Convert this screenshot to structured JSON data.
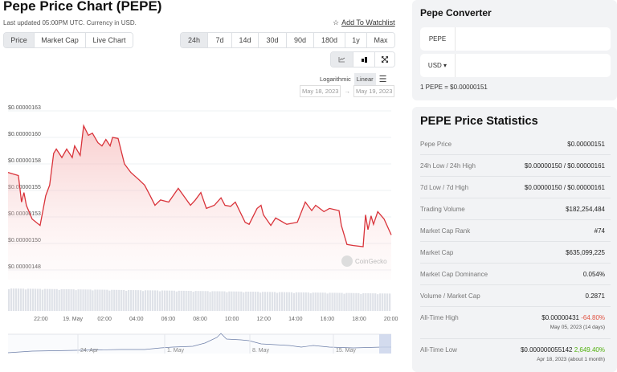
{
  "header": {
    "title": "Pepe Price Chart (PEPE)",
    "updated": "Last updated 05:00PM UTC. Currency in USD.",
    "watchlist": "Add To Watchlist"
  },
  "tabs": [
    {
      "label": "Price",
      "active": true
    },
    {
      "label": "Market Cap"
    },
    {
      "label": "Live Chart"
    }
  ],
  "ranges": [
    {
      "label": "24h",
      "active": true
    },
    {
      "label": "7d"
    },
    {
      "label": "14d"
    },
    {
      "label": "30d"
    },
    {
      "label": "90d"
    },
    {
      "label": "180d"
    },
    {
      "label": "1y"
    },
    {
      "label": "Max"
    }
  ],
  "tools": [
    "line-chart-icon",
    "candlestick-icon",
    "fullscreen-icon"
  ],
  "scale": {
    "log": "Logarithmic",
    "linear": "Linear",
    "active": "Linear"
  },
  "dates": {
    "from": "May 18, 2023",
    "sep": "→",
    "to": "May 19, 2023"
  },
  "watermark": "CoinGecko",
  "colors": {
    "line": "#d9333a",
    "fill": "#f8c9c9",
    "volume": "#dfe2e8",
    "navigator": "#6c7ea8"
  },
  "chart_data": {
    "type": "area",
    "ylim": [
      1.475e-06,
      1.625e-06
    ],
    "ytick_labels": [
      "$0.00000163",
      "$0.00000160",
      "$0.00000158",
      "$0.00000155",
      "$0.00000153",
      "$0.00000150",
      "$0.00000148"
    ],
    "yticks": [
      1.625e-06,
      1.6e-06,
      1.575e-06,
      1.55e-06,
      1.525e-06,
      1.5e-06,
      1.475e-06
    ],
    "xticks": [
      {
        "t": "2023-05-18T22:00",
        "label": "22:00"
      },
      {
        "t": "2023-05-19T00:00",
        "label": "19. May"
      },
      {
        "t": "2023-05-19T02:00",
        "label": "02:00"
      },
      {
        "t": "2023-05-19T04:00",
        "label": "04:00"
      },
      {
        "t": "2023-05-19T06:00",
        "label": "06:00"
      },
      {
        "t": "2023-05-19T08:00",
        "label": "08:00"
      },
      {
        "t": "2023-05-19T10:00",
        "label": "10:00"
      },
      {
        "t": "2023-05-19T12:00",
        "label": "12:00"
      },
      {
        "t": "2023-05-19T14:00",
        "label": "14:00"
      },
      {
        "t": "2023-05-19T16:00",
        "label": "16:00"
      },
      {
        "t": "2023-05-19T18:00",
        "label": "18:00"
      },
      {
        "t": "2023-05-19T20:00",
        "label": "20:00"
      }
    ],
    "grid": true,
    "series": [
      {
        "x": [
          "2023-05-18T19:56",
          "2023-05-18T20:35",
          "2023-05-18T20:47",
          "2023-05-18T20:56",
          "2023-05-18T21:05",
          "2023-05-18T21:27",
          "2023-05-18T21:57",
          "2023-05-18T22:18",
          "2023-05-18T22:33",
          "2023-05-18T22:48",
          "2023-05-18T22:58",
          "2023-05-18T23:19",
          "2023-05-18T23:37",
          "2023-05-18T23:58",
          "2023-05-19T00:07",
          "2023-05-19T00:28",
          "2023-05-19T00:41",
          "2023-05-19T00:59",
          "2023-05-19T01:14",
          "2023-05-19T01:35",
          "2023-05-19T01:50",
          "2023-05-19T02:05",
          "2023-05-19T02:21",
          "2023-05-19T02:30",
          "2023-05-19T02:51",
          "2023-05-19T03:15",
          "2023-05-19T03:39",
          "2023-05-19T04:10",
          "2023-05-19T04:31",
          "2023-05-19T04:52",
          "2023-05-19T05:10",
          "2023-05-19T05:31",
          "2023-05-19T06:02",
          "2023-05-19T06:38",
          "2023-05-19T07:24",
          "2023-05-19T07:42",
          "2023-05-19T08:03",
          "2023-05-19T08:24",
          "2023-05-19T08:54",
          "2023-05-19T09:19",
          "2023-05-19T09:34",
          "2023-05-19T09:55",
          "2023-05-19T10:13",
          "2023-05-19T10:50",
          "2023-05-19T11:05",
          "2023-05-19T11:35",
          "2023-05-19T11:50",
          "2023-05-19T11:59",
          "2023-05-19T12:27",
          "2023-05-19T12:45",
          "2023-05-19T13:27",
          "2023-05-19T14:07",
          "2023-05-19T14:37",
          "2023-05-19T15:01",
          "2023-05-19T15:16",
          "2023-05-19T15:47",
          "2023-05-19T16:08",
          "2023-05-19T16:44",
          "2023-05-19T16:53",
          "2023-05-19T17:14",
          "2023-05-19T17:39",
          "2023-05-19T18:15",
          "2023-05-19T18:24",
          "2023-05-19T18:33",
          "2023-05-19T18:45",
          "2023-05-19T18:54",
          "2023-05-19T19:10",
          "2023-05-19T19:34",
          "2023-05-19T20:01"
        ],
        "y": [
          1.567e-06,
          1.564e-06,
          1.539e-06,
          1.548e-06,
          1.536e-06,
          1.523e-06,
          1.517e-06,
          1.545e-06,
          1.555e-06,
          1.585e-06,
          1.589e-06,
          1.581e-06,
          1.589e-06,
          1.581e-06,
          1.592e-06,
          1.583e-06,
          1.611e-06,
          1.602e-06,
          1.604e-06,
          1.595e-06,
          1.592e-06,
          1.598e-06,
          1.592e-06,
          1.6e-06,
          1.599e-06,
          1.575e-06,
          1.567e-06,
          1.56e-06,
          1.555e-06,
          1.545e-06,
          1.536e-06,
          1.541e-06,
          1.539e-06,
          1.552e-06,
          1.536e-06,
          1.541e-06,
          1.548e-06,
          1.533e-06,
          1.536e-06,
          1.543e-06,
          1.536e-06,
          1.535e-06,
          1.539e-06,
          1.52e-06,
          1.518e-06,
          1.533e-06,
          1.536e-06,
          1.527e-06,
          1.517e-06,
          1.524e-06,
          1.518e-06,
          1.52e-06,
          1.539e-06,
          1.531e-06,
          1.536e-06,
          1.53e-06,
          1.533e-06,
          1.531e-06,
          1.517e-06,
          1.499e-06,
          1.498e-06,
          1.497e-06,
          1.527e-06,
          1.513e-06,
          1.526e-06,
          1.518e-06,
          1.53e-06,
          1.523e-06,
          1.508e-06
        ]
      }
    ]
  },
  "navigator": {
    "labels": [
      "24. Apr",
      "1. May",
      "8. May",
      "15. May"
    ]
  },
  "converter": {
    "title": "Pepe Converter",
    "from": "PEPE",
    "to": "USD ▾",
    "rate": "1 PEPE = $0.00000151"
  },
  "stats": {
    "title": "PEPE Price Statistics",
    "rows": [
      {
        "k": "Pepe Price",
        "v": "$0.00000151"
      },
      {
        "k": "24h Low / 24h High",
        "v": "$0.00000150 / $0.00000161"
      },
      {
        "k": "7d Low / 7d High",
        "v": "$0.00000150 / $0.00000161"
      },
      {
        "k": "Trading Volume",
        "v": "$182,254,484"
      },
      {
        "k": "Market Cap Rank",
        "v": "#74"
      },
      {
        "k": "Market Cap",
        "v": "$635,099,225"
      },
      {
        "k": "Market Cap Dominance",
        "v": "0.054%"
      },
      {
        "k": "Volume / Market Cap",
        "v": "0.2871"
      },
      {
        "k": "All-Time High",
        "v": "$0.00000431",
        "pct": "-64.80%",
        "sub": "May 05, 2023 (14 days)"
      },
      {
        "k": "All-Time Low",
        "v": "$0.000000055142",
        "pct": "2,649.40%",
        "sub": "Apr 18, 2023 (about 1 month)"
      }
    ]
  }
}
